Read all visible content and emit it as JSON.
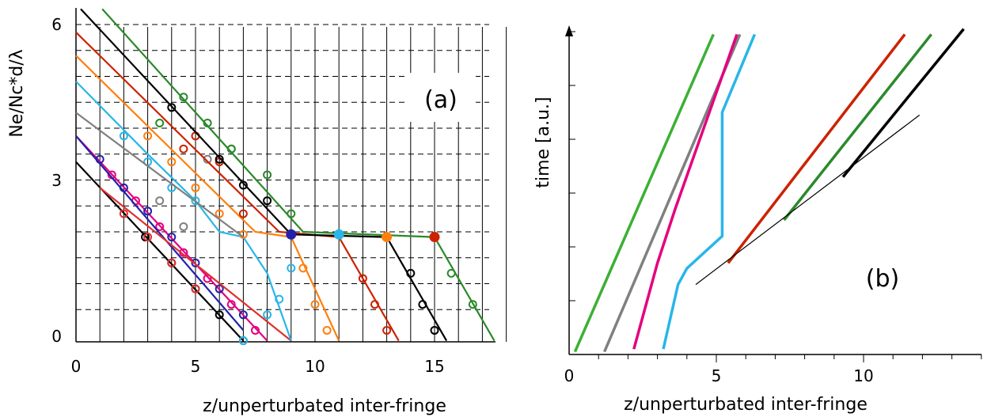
{
  "chart_data": [
    {
      "type": "line",
      "panel_label": "(a)",
      "xlabel": "z/unperturbated inter-fringe",
      "ylabel": "Ne/Nc*d/λ",
      "xlim": [
        0,
        18
      ],
      "ylim": [
        -0.3,
        6.3
      ],
      "xticks": [
        0,
        5,
        10,
        15
      ],
      "yticks": [
        0,
        3,
        6
      ],
      "grid": "dashed horizontal every 0.5, solid vertical every 1",
      "series": [
        {
          "color": "#000000",
          "points": [
            [
              0,
              3.35
            ],
            [
              7,
              -0.1
            ]
          ],
          "markers": [
            [
              2.9,
              1.9
            ],
            [
              4,
              1.4
            ],
            [
              5,
              0.9
            ],
            [
              6,
              0.4
            ],
            [
              7,
              -0.1
            ]
          ]
        },
        {
          "color": "#e4007f",
          "points": [
            [
              0,
              3.85
            ],
            [
              8,
              -0.1
            ]
          ],
          "markers": [
            [
              1.5,
              3.1
            ],
            [
              2.5,
              2.6
            ],
            [
              3.5,
              2.1
            ],
            [
              4.5,
              1.6
            ],
            [
              5.5,
              1.1
            ],
            [
              6.5,
              0.6
            ],
            [
              7.5,
              0.1
            ]
          ]
        },
        {
          "color": "#2222aa",
          "points": [
            [
              0,
              3.85
            ],
            [
              7,
              0.1
            ]
          ],
          "markers": [
            [
              1,
              3.4
            ],
            [
              2,
              2.85
            ],
            [
              3,
              2.4
            ],
            [
              4,
              1.9
            ],
            [
              5,
              1.4
            ],
            [
              6,
              0.9
            ],
            [
              7,
              0.4
            ]
          ]
        },
        {
          "color": "#e03030",
          "points": [
            [
              1,
              2.85
            ],
            [
              9,
              -0.1
            ]
          ],
          "markers": [
            [
              2,
              2.35
            ],
            [
              3,
              1.9
            ],
            [
              4,
              1.4
            ],
            [
              5,
              0.9
            ]
          ]
        },
        {
          "color": "#29b6e8",
          "points": [
            [
              0,
              4.9
            ],
            [
              3,
              3.5
            ],
            [
              5,
              2.6
            ],
            [
              6,
              2.0
            ],
            [
              7,
              1.9
            ],
            [
              8,
              1.2
            ],
            [
              9,
              -0.1
            ]
          ],
          "markers": [
            [
              2,
              3.85
            ],
            [
              3,
              3.35
            ],
            [
              4,
              2.85
            ],
            [
              5,
              2.6
            ],
            [
              7,
              -0.1
            ],
            [
              8,
              0.4
            ],
            [
              8.5,
              0.7
            ],
            [
              9,
              1.3
            ]
          ]
        },
        {
          "color": "#ff7f0e",
          "points": [
            [
              0,
              5.4
            ],
            [
              7.5,
              2.0
            ],
            [
              9,
              1.9
            ],
            [
              11,
              -0.1
            ]
          ],
          "markers": [
            [
              3,
              3.85
            ],
            [
              4,
              3.35
            ],
            [
              5,
              2.85
            ],
            [
              6,
              2.35
            ],
            [
              7,
              1.95
            ],
            [
              9.5,
              1.3
            ],
            [
              10,
              0.6
            ],
            [
              10.5,
              0.1
            ]
          ]
        },
        {
          "color": "#808080",
          "points": [
            [
              0,
              4.3
            ],
            [
              7,
              1.9
            ]
          ],
          "markers": [
            [
              3.5,
              2.6
            ],
            [
              4.5,
              2.1
            ],
            [
              5.5,
              3.4
            ],
            [
              6.5,
              3.6
            ]
          ]
        },
        {
          "color": "#cc2200",
          "points": [
            [
              0,
              5.85
            ],
            [
              8.5,
              2.0
            ],
            [
              11,
              1.9
            ],
            [
              13.5,
              -0.1
            ]
          ],
          "markers": [
            [
              4.5,
              3.6
            ],
            [
              5,
              3.85
            ],
            [
              6,
              3.35
            ],
            [
              7,
              2.35
            ],
            [
              12,
              1.1
            ],
            [
              12.5,
              0.6
            ],
            [
              13,
              0.1
            ]
          ]
        },
        {
          "color": "#000000",
          "points": [
            [
              0.2,
              6.3
            ],
            [
              9,
              1.95
            ],
            [
              13,
              1.9
            ],
            [
              15.5,
              -0.1
            ]
          ],
          "markers": [
            [
              4,
              4.4
            ],
            [
              6,
              3.4
            ],
            [
              7,
              2.9
            ],
            [
              8,
              2.6
            ],
            [
              14,
              1.2
            ],
            [
              14.5,
              0.6
            ],
            [
              15,
              0.1
            ]
          ]
        },
        {
          "color": "#2a8a2a",
          "points": [
            [
              1.1,
              6.3
            ],
            [
              9.5,
              2.0
            ],
            [
              15,
              1.9
            ],
            [
              17.5,
              -0.1
            ]
          ],
          "markers": [
            [
              3.5,
              4.1
            ],
            [
              4.5,
              4.6
            ],
            [
              5.5,
              4.1
            ],
            [
              6.5,
              3.6
            ],
            [
              8,
              3.1
            ],
            [
              9,
              2.35
            ],
            [
              15.7,
              1.2
            ],
            [
              16.6,
              0.6
            ]
          ]
        }
      ]
    },
    {
      "type": "line",
      "panel_label": "(b)",
      "xlabel": "z/unperturbated inter-fringe",
      "ylabel": "time [a.u.]",
      "xlim": [
        0,
        14
      ],
      "ylim": [
        0,
        6
      ],
      "xticks": [
        0,
        5,
        10
      ],
      "series": [
        {
          "color": "#3cb034",
          "points": [
            [
              0.2,
              0.05
            ],
            [
              4.9,
              5.95
            ]
          ]
        },
        {
          "color": "#808080",
          "points": [
            [
              1.2,
              0.05
            ],
            [
              5.8,
              5.95
            ]
          ]
        },
        {
          "color": "#e4007f",
          "points": [
            [
              2.2,
              0.1
            ],
            [
              3.0,
              1.7
            ],
            [
              3.6,
              2.7
            ],
            [
              5.7,
              5.95
            ]
          ]
        },
        {
          "color": "#29b6e8",
          "points": [
            [
              3.2,
              0.1
            ],
            [
              3.7,
              1.3
            ],
            [
              4.0,
              1.6
            ],
            [
              5.2,
              2.2
            ],
            [
              5.2,
              4.5
            ],
            [
              6.3,
              5.95
            ]
          ]
        },
        {
          "color": "#cc2200",
          "points": [
            [
              5.4,
              1.7
            ],
            [
              11.4,
              5.95
            ]
          ]
        },
        {
          "color": "#2a8a2a",
          "points": [
            [
              7.3,
              2.5
            ],
            [
              12.3,
              5.95
            ]
          ]
        },
        {
          "color": "#000000",
          "points": [
            [
              9.3,
              3.3
            ],
            [
              13.4,
              6.05
            ]
          ]
        },
        {
          "color": "#000000",
          "points": [
            [
              4.3,
              1.3
            ],
            [
              11.9,
              4.45
            ]
          ],
          "thin": true
        }
      ]
    }
  ]
}
